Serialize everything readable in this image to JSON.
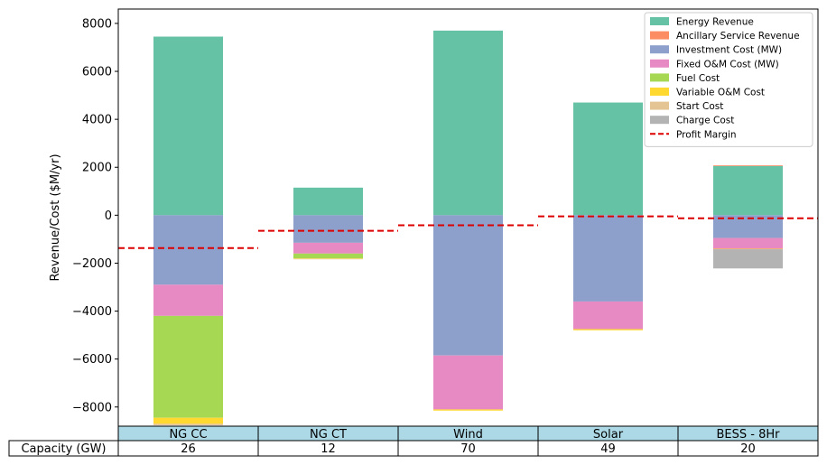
{
  "chart_data": {
    "type": "bar",
    "stacked": true,
    "title": "",
    "xlabel": "",
    "ylabel": "Revenue/Cost ($M/yr)",
    "ylim": [
      -8800,
      8600
    ],
    "yticks": [
      8000,
      6000,
      4000,
      2000,
      0,
      -2000,
      -4000,
      -6000,
      -8000
    ],
    "ytick_labels": [
      "8000",
      "6000",
      "4000",
      "2000",
      "0",
      "−2000",
      "−4000",
      "−6000",
      "−8000"
    ],
    "grid": false,
    "legend_position": "top-right",
    "categories": [
      "NG CC",
      "NG CT",
      "Wind",
      "Solar",
      "BESS - 8Hr"
    ],
    "series": [
      {
        "name": "Energy Revenue",
        "color": "#66c2a5",
        "values": [
          7450,
          1150,
          7700,
          4700,
          2050
        ]
      },
      {
        "name": "Ancillary Service Revenue",
        "color": "#fc8d62",
        "values": [
          0,
          0,
          0,
          0,
          30
        ]
      },
      {
        "name": "Investment Cost (MW)",
        "color": "#8da0cb",
        "values": [
          -2900,
          -1150,
          -5850,
          -3600,
          -950
        ]
      },
      {
        "name": "Fixed O&M Cost (MW)",
        "color": "#e78ac3",
        "values": [
          -1300,
          -450,
          -2250,
          -1150,
          -450
        ]
      },
      {
        "name": "Fuel Cost",
        "color": "#a6d854",
        "values": [
          -4250,
          -200,
          0,
          0,
          0
        ]
      },
      {
        "name": "Variable O&M Cost",
        "color": "#ffd92f",
        "values": [
          -250,
          -20,
          -50,
          -50,
          -20
        ]
      },
      {
        "name": "Start Cost",
        "color": "#e5c494",
        "values": [
          -60,
          -20,
          0,
          0,
          0
        ]
      },
      {
        "name": "Charge Cost",
        "color": "#b3b3b3",
        "values": [
          0,
          0,
          0,
          0,
          -800
        ]
      }
    ],
    "profit_margin": {
      "name": "Profit Margin",
      "color": "#dd0000",
      "style": "dashed",
      "values": [
        -1370,
        -650,
        -420,
        -50,
        -130
      ]
    },
    "table": {
      "header_color": "#add8e6",
      "row_label": "Capacity (GW)",
      "values": [
        "26",
        "12",
        "70",
        "49",
        "20"
      ]
    }
  }
}
